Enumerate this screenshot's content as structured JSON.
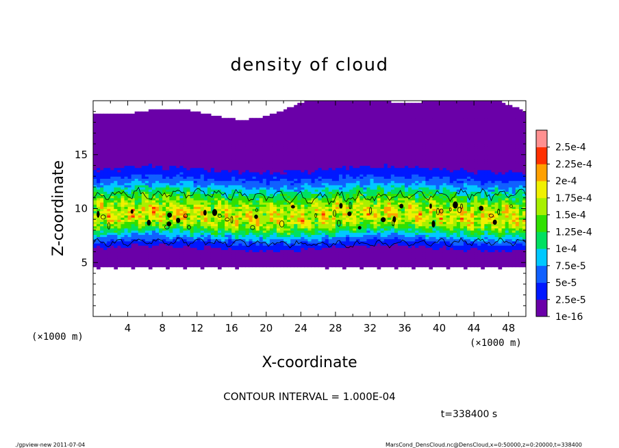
{
  "chart_data": {
    "type": "heatmap",
    "title": "density of cloud",
    "xlabel": "X-coordinate",
    "ylabel": "Z-coordinate",
    "x_unit": "(×1000 m)",
    "y_unit": "(×1000 m)",
    "xlim": [
      0,
      50
    ],
    "ylim": [
      0,
      20
    ],
    "x_ticks": [
      4,
      8,
      12,
      16,
      20,
      24,
      28,
      32,
      36,
      40,
      44,
      48
    ],
    "y_ticks": [
      5,
      10,
      15
    ],
    "contour_interval_text": "CONTOUR INTERVAL = 1.000E-04",
    "time_text": "t=338400 s",
    "footer_left": "./gpview-new   2011-07-04",
    "footer_right": "MarsCond_DensCloud.nc@DensCloud,x=0:50000,z=0:20000,t=338400",
    "colorbar_levels": [
      "1e-16",
      "2.5e-5",
      "5e-5",
      "7.5e-5",
      "1e-4",
      "1.25e-4",
      "1.5e-4",
      "1.75e-4",
      "2e-4",
      "2.25e-4",
      "2.5e-4"
    ],
    "colorbar_colors": [
      "#6a00a8",
      "#0018ff",
      "#1060ff",
      "#00c8ff",
      "#00e060",
      "#30e000",
      "#a8f000",
      "#f0f000",
      "#ffa000",
      "#ff3000",
      "#ff9090"
    ],
    "cloud_layer": {
      "bottom_km": 4.7,
      "top_km": 19.5,
      "peak_km": 9.3,
      "peak_density": 0.00018,
      "contour_level": 0.0001,
      "contour_lower_km": 6.8,
      "contour_upper_km": 11.8
    }
  }
}
